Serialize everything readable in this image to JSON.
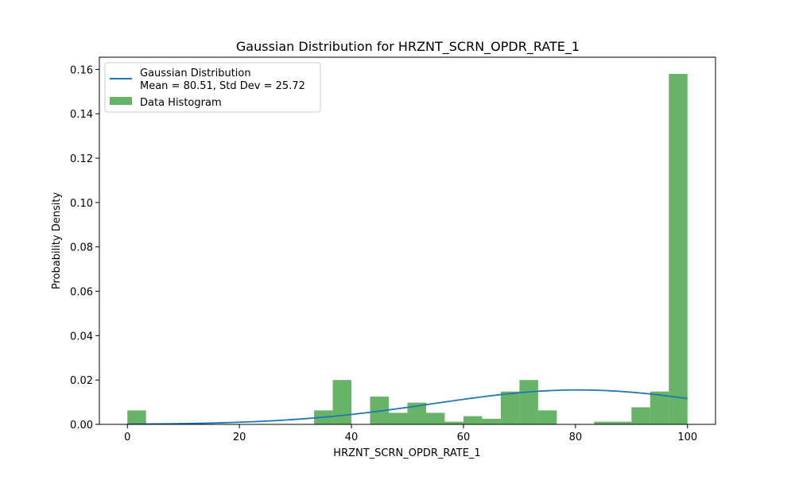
{
  "chart_data": {
    "type": "bar",
    "title": "Gaussian Distribution for HRZNT_SCRN_OPDR_RATE_1",
    "xlabel": "HRZNT_SCRN_OPDR_RATE_1",
    "ylabel": "Probability Density",
    "xlim": [
      -5,
      105
    ],
    "ylim": [
      0,
      0.1655
    ],
    "xticks": [
      0,
      20,
      40,
      60,
      80,
      100
    ],
    "yticks": [
      0.0,
      0.02,
      0.04,
      0.06,
      0.08,
      0.1,
      0.12,
      0.14,
      0.16
    ],
    "grid": false,
    "legend_position": "top-left",
    "histogram": {
      "name": "Data Histogram",
      "color": "#4ca64c",
      "bin_width": 3.333,
      "bin_starts": [
        0,
        3.333,
        6.667,
        10,
        13.333,
        16.667,
        20,
        23.333,
        26.667,
        30,
        33.333,
        36.667,
        40,
        43.333,
        46.667,
        50,
        53.333,
        56.667,
        60,
        63.333,
        66.667,
        70,
        73.333,
        76.667,
        80,
        83.333,
        86.667,
        90,
        93.333,
        96.667
      ],
      "values": [
        0.0063,
        0,
        0,
        0,
        0,
        0,
        0,
        0,
        0,
        0,
        0.0063,
        0.02,
        0,
        0.0125,
        0.0052,
        0.0098,
        0.0052,
        0.0012,
        0.0037,
        0.0025,
        0.0148,
        0.02,
        0.0063,
        0,
        0,
        0.0012,
        0.0012,
        0.0077,
        0.0148,
        0.158
      ]
    },
    "gaussian": {
      "name": "Gaussian Distribution\nMean = 80.51, Std Dev = 25.72",
      "color": "#1f77b4",
      "mean": 80.51,
      "std": 25.72,
      "x_range": [
        0,
        100
      ]
    }
  }
}
